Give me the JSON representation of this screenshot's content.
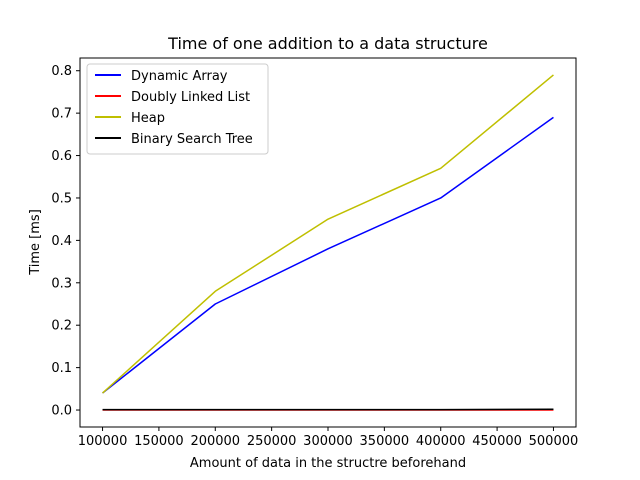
{
  "chart_data": {
    "type": "line",
    "title": "Time of one addition to a data structure",
    "xlabel": "Amount of data in the structre beforehand",
    "ylabel": "Time [ms]",
    "x": [
      100000,
      200000,
      300000,
      400000,
      500000
    ],
    "xlim": [
      80000,
      520000
    ],
    "ylim": [
      -0.04,
      0.83
    ],
    "xticks": [
      100000,
      150000,
      200000,
      250000,
      300000,
      350000,
      400000,
      450000,
      500000
    ],
    "yticks": [
      0.0,
      0.1,
      0.2,
      0.3,
      0.4,
      0.5,
      0.6,
      0.7,
      0.8
    ],
    "xtick_labels": [
      "100000",
      "150000",
      "200000",
      "250000",
      "300000",
      "350000",
      "400000",
      "450000",
      "500000"
    ],
    "ytick_labels": [
      "0.0",
      "0.1",
      "0.2",
      "0.3",
      "0.4",
      "0.5",
      "0.6",
      "0.7",
      "0.8"
    ],
    "grid": false,
    "legend_position": "top-left",
    "series": [
      {
        "name": "Dynamic Array",
        "color": "#0000ff",
        "values": [
          0.04,
          0.25,
          0.38,
          0.5,
          0.69
        ]
      },
      {
        "name": "Doubly Linked List",
        "color": "#ff0000",
        "values": [
          0.0,
          0.0,
          0.0,
          0.0,
          0.0
        ]
      },
      {
        "name": "Heap",
        "color": "#bfbf00",
        "values": [
          0.04,
          0.28,
          0.45,
          0.57,
          0.79
        ]
      },
      {
        "name": "Binary Search Tree",
        "color": "#000000",
        "values": [
          0.001,
          0.001,
          0.001,
          0.001,
          0.002
        ]
      }
    ]
  }
}
